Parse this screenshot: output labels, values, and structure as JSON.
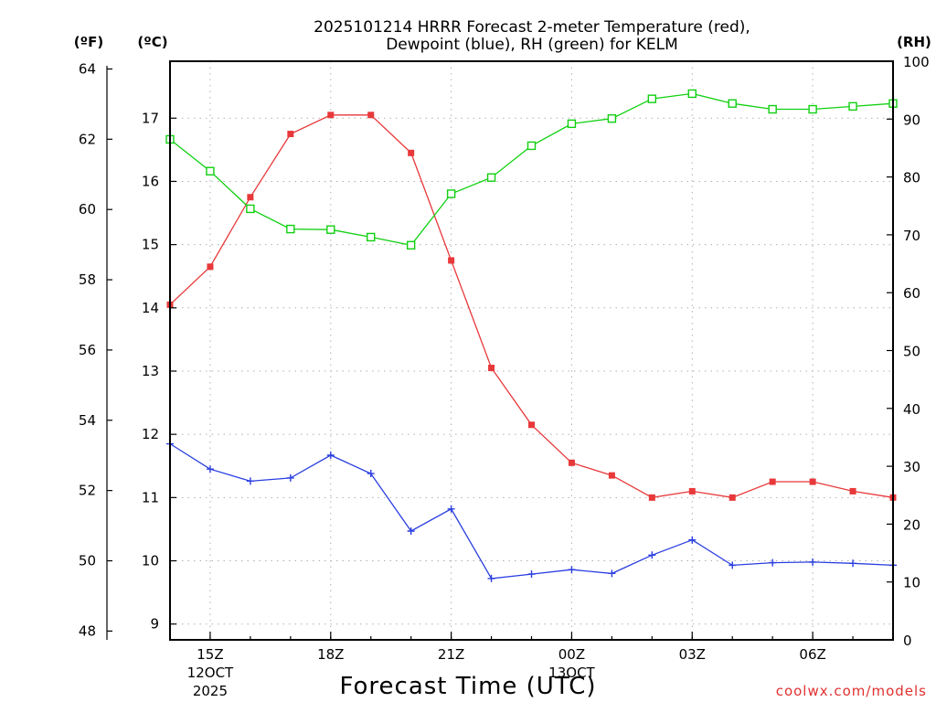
{
  "chart_data": {
    "type": "line",
    "title_line1": "2025101214 HRRR Forecast 2-meter Temperature (red),",
    "title_line2": "Dewpoint (blue), RH (green) for KELM",
    "xlabel": "Forecast Time (UTC)",
    "credit": "coolwx.com/models",
    "units": {
      "fahrenheit": "(ºF)",
      "celsius": "(ºC)",
      "rh": "(RH)"
    },
    "hours": [
      14,
      15,
      16,
      17,
      18,
      19,
      20,
      21,
      22,
      23,
      24,
      25,
      26,
      27,
      28,
      29,
      30,
      31,
      32
    ],
    "xlim": [
      14,
      32
    ],
    "x_ticks": [
      {
        "hour": 15,
        "label": "15Z",
        "date1": "12OCT",
        "date2": "2025"
      },
      {
        "hour": 18,
        "label": "18Z"
      },
      {
        "hour": 21,
        "label": "21Z"
      },
      {
        "hour": 24,
        "label": "00Z",
        "date1": "13OCT"
      },
      {
        "hour": 27,
        "label": "03Z"
      },
      {
        "hour": 30,
        "label": "06Z"
      }
    ],
    "celsius_axis": {
      "ylim": [
        8.75,
        17.9
      ],
      "ticks": [
        9,
        10,
        11,
        12,
        13,
        14,
        15,
        16,
        17
      ]
    },
    "fahrenheit_axis": {
      "ylim": [
        47.75,
        64.22
      ],
      "ticks": [
        48,
        50,
        52,
        54,
        56,
        58,
        60,
        62,
        64
      ]
    },
    "rh_axis": {
      "ylim": [
        0,
        100
      ],
      "ticks": [
        0,
        10,
        20,
        30,
        40,
        50,
        60,
        70,
        80,
        90,
        100
      ]
    },
    "series": [
      {
        "name": "Temperature",
        "axis": "celsius",
        "color": "#e8383a",
        "marker": "filled-square",
        "values": [
          14.05,
          14.65,
          15.75,
          16.75,
          17.05,
          17.05,
          16.45,
          14.75,
          13.05,
          12.15,
          11.55,
          11.35,
          11.0,
          11.1,
          11.0,
          11.25,
          11.25,
          11.1,
          11.0
        ]
      },
      {
        "name": "Dewpoint",
        "axis": "celsius",
        "color": "#2a3ee0",
        "marker": "plus",
        "values": [
          11.85,
          11.45,
          11.26,
          11.31,
          11.67,
          11.38,
          10.47,
          10.82,
          9.72,
          9.79,
          9.86,
          9.8,
          10.09,
          10.33,
          9.93,
          9.97,
          9.98,
          9.96,
          9.93
        ]
      },
      {
        "name": "RH",
        "axis": "rh",
        "color": "#10d010",
        "marker": "open-square",
        "values": [
          86.5,
          81.0,
          74.5,
          71.0,
          70.9,
          69.6,
          68.2,
          77.1,
          79.9,
          85.4,
          89.2,
          90.1,
          93.5,
          94.4,
          92.7,
          91.7,
          91.7,
          92.2,
          92.7
        ]
      }
    ]
  }
}
